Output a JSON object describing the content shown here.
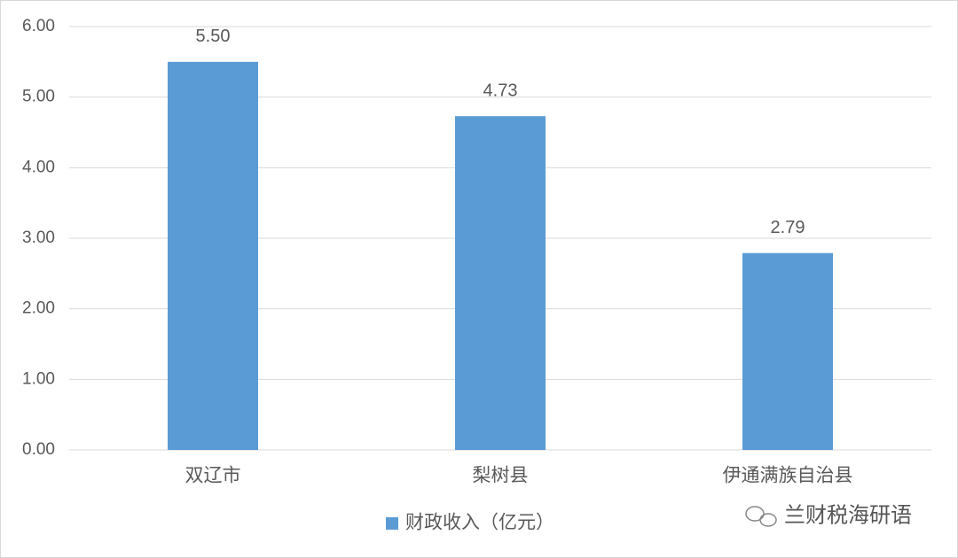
{
  "chart_data": {
    "type": "bar",
    "categories": [
      "双辽市",
      "梨树县",
      "伊通满族自治县"
    ],
    "series": [
      {
        "name": "财政收入（亿元）",
        "color": "#5b9bd5",
        "values": [
          5.5,
          4.73,
          2.79
        ],
        "value_labels": [
          "5.50",
          "4.73",
          "2.79"
        ]
      }
    ],
    "ylim": [
      0,
      6
    ],
    "yticks": [
      {
        "value": 0,
        "label": "0.00"
      },
      {
        "value": 1,
        "label": "1.00"
      },
      {
        "value": 2,
        "label": "2.00"
      },
      {
        "value": 3,
        "label": "3.00"
      },
      {
        "value": 4,
        "label": "4.00"
      },
      {
        "value": 5,
        "label": "5.00"
      },
      {
        "value": 6,
        "label": "6.00"
      }
    ],
    "grid": true,
    "legend": "bottom",
    "watermark": "兰财税海研语"
  }
}
